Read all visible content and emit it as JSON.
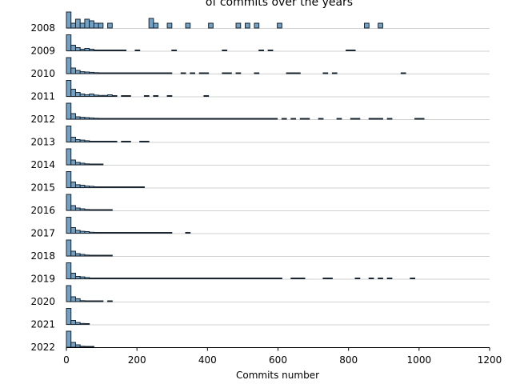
{
  "chart_data": {
    "type": "histogram-ridge",
    "title": "of commits over the years",
    "xlabel": "Commits number",
    "xlim": [
      0,
      1200
    ],
    "xticks": [
      "0",
      "200",
      "400",
      "600",
      "800",
      "1000",
      "1200"
    ],
    "bin_width": 13,
    "colors": {
      "bar": "#72a1c6",
      "edge": "#1a2630",
      "baseline": "#d0d0d0"
    },
    "series": [
      {
        "name": "2008",
        "bins": [
          [
            0,
            1.0
          ],
          [
            13,
            0.3
          ],
          [
            26,
            0.55
          ],
          [
            39,
            0.3
          ],
          [
            52,
            0.55
          ],
          [
            65,
            0.45
          ],
          [
            78,
            0.3
          ],
          [
            91,
            0.3
          ],
          [
            117,
            0.3
          ],
          [
            234,
            0.6
          ],
          [
            247,
            0.3
          ],
          [
            286,
            0.3
          ],
          [
            338,
            0.3
          ],
          [
            403,
            0.3
          ],
          [
            481,
            0.3
          ],
          [
            507,
            0.3
          ],
          [
            533,
            0.3
          ],
          [
            598,
            0.3
          ],
          [
            845,
            0.3
          ],
          [
            884,
            0.3
          ]
        ]
      },
      {
        "name": "2009",
        "bins": [
          [
            0,
            1.0
          ],
          [
            13,
            0.35
          ],
          [
            26,
            0.2
          ],
          [
            39,
            0.1
          ],
          [
            52,
            0.15
          ],
          [
            65,
            0.1
          ],
          [
            78,
            0.05
          ],
          [
            91,
            0.05
          ],
          [
            104,
            0.04
          ],
          [
            117,
            0.04
          ],
          [
            130,
            0.04
          ],
          [
            143,
            0.04
          ],
          [
            156,
            0.04
          ],
          [
            195,
            0.04
          ],
          [
            299,
            0.04
          ],
          [
            442,
            0.04
          ],
          [
            546,
            0.04
          ],
          [
            572,
            0.04
          ],
          [
            793,
            0.04
          ],
          [
            806,
            0.04
          ]
        ]
      },
      {
        "name": "2010",
        "bins": [
          [
            0,
            1.0
          ],
          [
            13,
            0.35
          ],
          [
            26,
            0.2
          ],
          [
            39,
            0.12
          ],
          [
            52,
            0.1
          ],
          [
            65,
            0.08
          ],
          [
            78,
            0.06
          ],
          [
            91,
            0.05
          ],
          [
            104,
            0.05
          ],
          [
            117,
            0.04
          ],
          [
            130,
            0.04
          ],
          [
            143,
            0.04
          ],
          [
            156,
            0.04
          ],
          [
            169,
            0.04
          ],
          [
            182,
            0.04
          ],
          [
            195,
            0.04
          ],
          [
            208,
            0.04
          ],
          [
            221,
            0.04
          ],
          [
            234,
            0.04
          ],
          [
            247,
            0.04
          ],
          [
            260,
            0.04
          ],
          [
            273,
            0.04
          ],
          [
            286,
            0.04
          ],
          [
            325,
            0.04
          ],
          [
            351,
            0.04
          ],
          [
            377,
            0.04
          ],
          [
            390,
            0.04
          ],
          [
            442,
            0.04
          ],
          [
            455,
            0.04
          ],
          [
            481,
            0.04
          ],
          [
            533,
            0.04
          ],
          [
            624,
            0.04
          ],
          [
            637,
            0.04
          ],
          [
            650,
            0.04
          ],
          [
            728,
            0.04
          ],
          [
            754,
            0.04
          ],
          [
            949,
            0.04
          ]
        ]
      },
      {
        "name": "2011",
        "bins": [
          [
            0,
            1.0
          ],
          [
            13,
            0.45
          ],
          [
            26,
            0.25
          ],
          [
            39,
            0.15
          ],
          [
            52,
            0.1
          ],
          [
            65,
            0.15
          ],
          [
            78,
            0.08
          ],
          [
            91,
            0.06
          ],
          [
            104,
            0.06
          ],
          [
            117,
            0.1
          ],
          [
            130,
            0.05
          ],
          [
            156,
            0.04
          ],
          [
            169,
            0.04
          ],
          [
            221,
            0.04
          ],
          [
            247,
            0.04
          ],
          [
            286,
            0.04
          ],
          [
            390,
            0.04
          ]
        ]
      },
      {
        "name": "2012",
        "bins": [
          [
            0,
            1.0
          ],
          [
            13,
            0.35
          ],
          [
            26,
            0.15
          ],
          [
            39,
            0.12
          ],
          [
            52,
            0.1
          ],
          [
            65,
            0.08
          ],
          [
            78,
            0.06
          ],
          [
            91,
            0.04
          ],
          [
            104,
            0.04
          ],
          [
            117,
            0.04
          ],
          [
            130,
            0.04
          ],
          [
            143,
            0.04
          ],
          [
            156,
            0.04
          ],
          [
            169,
            0.04
          ],
          [
            182,
            0.04
          ],
          [
            195,
            0.04
          ],
          [
            208,
            0.04
          ],
          [
            221,
            0.04
          ],
          [
            234,
            0.04
          ],
          [
            247,
            0.04
          ],
          [
            260,
            0.04
          ],
          [
            273,
            0.04
          ],
          [
            286,
            0.04
          ],
          [
            299,
            0.04
          ],
          [
            312,
            0.04
          ],
          [
            325,
            0.04
          ],
          [
            338,
            0.04
          ],
          [
            351,
            0.04
          ],
          [
            364,
            0.04
          ],
          [
            377,
            0.04
          ],
          [
            390,
            0.04
          ],
          [
            403,
            0.04
          ],
          [
            416,
            0.04
          ],
          [
            429,
            0.04
          ],
          [
            442,
            0.04
          ],
          [
            455,
            0.04
          ],
          [
            468,
            0.04
          ],
          [
            481,
            0.04
          ],
          [
            494,
            0.04
          ],
          [
            507,
            0.04
          ],
          [
            520,
            0.04
          ],
          [
            533,
            0.04
          ],
          [
            546,
            0.04
          ],
          [
            559,
            0.04
          ],
          [
            572,
            0.04
          ],
          [
            585,
            0.04
          ],
          [
            611,
            0.04
          ],
          [
            637,
            0.04
          ],
          [
            663,
            0.04
          ],
          [
            676,
            0.04
          ],
          [
            715,
            0.04
          ],
          [
            767,
            0.04
          ],
          [
            806,
            0.04
          ],
          [
            819,
            0.04
          ],
          [
            858,
            0.04
          ],
          [
            871,
            0.04
          ],
          [
            884,
            0.04
          ],
          [
            910,
            0.04
          ],
          [
            988,
            0.04
          ],
          [
            1001,
            0.04
          ]
        ]
      },
      {
        "name": "2013",
        "bins": [
          [
            0,
            1.0
          ],
          [
            13,
            0.3
          ],
          [
            26,
            0.15
          ],
          [
            39,
            0.12
          ],
          [
            52,
            0.08
          ],
          [
            65,
            0.05
          ],
          [
            78,
            0.04
          ],
          [
            91,
            0.04
          ],
          [
            104,
            0.04
          ],
          [
            117,
            0.04
          ],
          [
            130,
            0.04
          ],
          [
            156,
            0.04
          ],
          [
            169,
            0.04
          ],
          [
            208,
            0.04
          ],
          [
            221,
            0.04
          ]
        ]
      },
      {
        "name": "2014",
        "bins": [
          [
            0,
            1.0
          ],
          [
            13,
            0.3
          ],
          [
            26,
            0.15
          ],
          [
            39,
            0.1
          ],
          [
            52,
            0.06
          ],
          [
            65,
            0.04
          ],
          [
            78,
            0.04
          ],
          [
            91,
            0.04
          ]
        ]
      },
      {
        "name": "2015",
        "bins": [
          [
            0,
            1.0
          ],
          [
            13,
            0.35
          ],
          [
            26,
            0.18
          ],
          [
            39,
            0.15
          ],
          [
            52,
            0.1
          ],
          [
            65,
            0.08
          ],
          [
            78,
            0.05
          ],
          [
            91,
            0.04
          ],
          [
            104,
            0.04
          ],
          [
            117,
            0.04
          ],
          [
            130,
            0.04
          ],
          [
            143,
            0.04
          ],
          [
            156,
            0.04
          ],
          [
            169,
            0.04
          ],
          [
            182,
            0.04
          ],
          [
            195,
            0.04
          ],
          [
            208,
            0.04
          ]
        ]
      },
      {
        "name": "2016",
        "bins": [
          [
            0,
            1.0
          ],
          [
            13,
            0.3
          ],
          [
            26,
            0.15
          ],
          [
            39,
            0.1
          ],
          [
            52,
            0.06
          ],
          [
            65,
            0.04
          ],
          [
            78,
            0.04
          ],
          [
            91,
            0.04
          ],
          [
            104,
            0.04
          ],
          [
            117,
            0.04
          ]
        ]
      },
      {
        "name": "2017",
        "bins": [
          [
            0,
            1.0
          ],
          [
            13,
            0.35
          ],
          [
            26,
            0.18
          ],
          [
            39,
            0.12
          ],
          [
            52,
            0.1
          ],
          [
            65,
            0.06
          ],
          [
            78,
            0.05
          ],
          [
            91,
            0.04
          ],
          [
            104,
            0.04
          ],
          [
            117,
            0.04
          ],
          [
            130,
            0.04
          ],
          [
            143,
            0.04
          ],
          [
            156,
            0.04
          ],
          [
            169,
            0.04
          ],
          [
            182,
            0.04
          ],
          [
            195,
            0.04
          ],
          [
            208,
            0.04
          ],
          [
            221,
            0.04
          ],
          [
            234,
            0.04
          ],
          [
            247,
            0.04
          ],
          [
            260,
            0.04
          ],
          [
            273,
            0.04
          ],
          [
            286,
            0.04
          ],
          [
            338,
            0.04
          ]
        ]
      },
      {
        "name": "2018",
        "bins": [
          [
            0,
            1.0
          ],
          [
            13,
            0.3
          ],
          [
            26,
            0.15
          ],
          [
            39,
            0.1
          ],
          [
            52,
            0.06
          ],
          [
            65,
            0.04
          ],
          [
            78,
            0.04
          ],
          [
            91,
            0.04
          ],
          [
            104,
            0.04
          ],
          [
            117,
            0.04
          ]
        ]
      },
      {
        "name": "2019",
        "bins": [
          [
            0,
            1.0
          ],
          [
            13,
            0.35
          ],
          [
            26,
            0.15
          ],
          [
            39,
            0.12
          ],
          [
            52,
            0.08
          ],
          [
            65,
            0.05
          ],
          [
            78,
            0.04
          ],
          [
            91,
            0.04
          ],
          [
            104,
            0.04
          ],
          [
            117,
            0.04
          ],
          [
            130,
            0.04
          ],
          [
            143,
            0.04
          ],
          [
            156,
            0.04
          ],
          [
            169,
            0.04
          ],
          [
            182,
            0.04
          ],
          [
            195,
            0.04
          ],
          [
            208,
            0.04
          ],
          [
            221,
            0.04
          ],
          [
            234,
            0.04
          ],
          [
            247,
            0.04
          ],
          [
            260,
            0.04
          ],
          [
            273,
            0.04
          ],
          [
            286,
            0.04
          ],
          [
            299,
            0.04
          ],
          [
            312,
            0.04
          ],
          [
            325,
            0.04
          ],
          [
            338,
            0.04
          ],
          [
            351,
            0.04
          ],
          [
            364,
            0.04
          ],
          [
            377,
            0.04
          ],
          [
            390,
            0.04
          ],
          [
            403,
            0.04
          ],
          [
            416,
            0.04
          ],
          [
            429,
            0.04
          ],
          [
            442,
            0.04
          ],
          [
            455,
            0.04
          ],
          [
            468,
            0.04
          ],
          [
            481,
            0.04
          ],
          [
            494,
            0.04
          ],
          [
            507,
            0.04
          ],
          [
            520,
            0.04
          ],
          [
            533,
            0.04
          ],
          [
            546,
            0.04
          ],
          [
            559,
            0.04
          ],
          [
            572,
            0.04
          ],
          [
            585,
            0.04
          ],
          [
            598,
            0.04
          ],
          [
            637,
            0.04
          ],
          [
            650,
            0.04
          ],
          [
            663,
            0.04
          ],
          [
            728,
            0.04
          ],
          [
            741,
            0.04
          ],
          [
            819,
            0.04
          ],
          [
            858,
            0.04
          ],
          [
            884,
            0.04
          ],
          [
            910,
            0.04
          ],
          [
            975,
            0.04
          ]
        ]
      },
      {
        "name": "2020",
        "bins": [
          [
            0,
            1.0
          ],
          [
            13,
            0.3
          ],
          [
            26,
            0.18
          ],
          [
            39,
            0.06
          ],
          [
            52,
            0.05
          ],
          [
            65,
            0.04
          ],
          [
            78,
            0.04
          ],
          [
            91,
            0.04
          ],
          [
            117,
            0.04
          ]
        ]
      },
      {
        "name": "2021",
        "bins": [
          [
            0,
            1.0
          ],
          [
            13,
            0.25
          ],
          [
            26,
            0.12
          ],
          [
            39,
            0.06
          ],
          [
            52,
            0.04
          ]
        ]
      },
      {
        "name": "2022",
        "bins": [
          [
            0,
            1.0
          ],
          [
            13,
            0.3
          ],
          [
            26,
            0.15
          ],
          [
            39,
            0.06
          ],
          [
            52,
            0.05
          ],
          [
            65,
            0.04
          ]
        ]
      }
    ]
  }
}
